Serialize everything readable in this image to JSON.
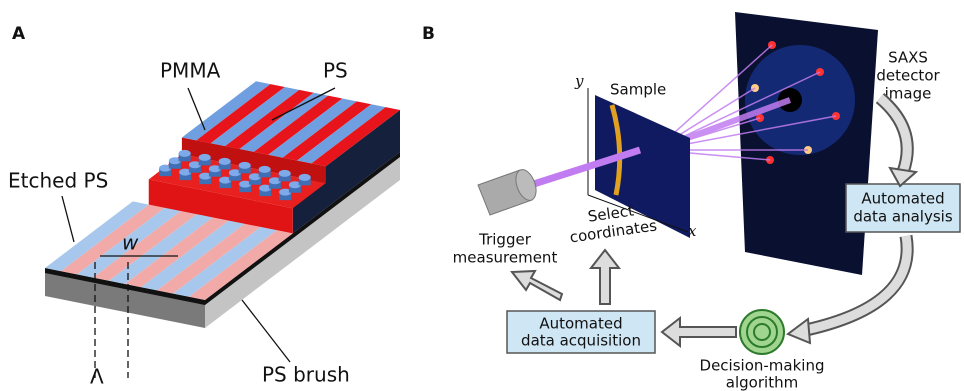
{
  "panel_a": {
    "label": "A",
    "pmma": "PMMA",
    "ps": "PS",
    "etched_ps": "Etched PS",
    "w": "w",
    "lambda": "Λ",
    "ps_brush": "PS brush"
  },
  "panel_b": {
    "label": "B",
    "sample": "Sample",
    "axis_y": "y",
    "axis_x": "x",
    "detector": [
      "SAXS",
      "detector",
      "image"
    ],
    "analysis": [
      "Automated",
      "data analysis"
    ],
    "select": [
      "Select",
      "coordinates"
    ],
    "trigger": [
      "Trigger",
      "measurement"
    ],
    "acquisition": [
      "Automated",
      "data acquisition"
    ],
    "decision": [
      "Decision-making",
      "algorithm"
    ]
  }
}
